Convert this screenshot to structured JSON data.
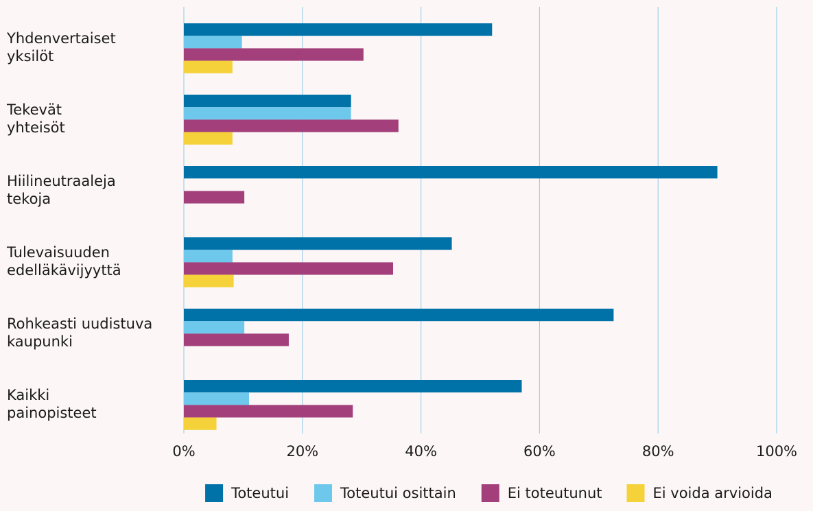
{
  "chart_data": {
    "type": "bar",
    "orientation": "horizontal",
    "title": "",
    "xlabel": "",
    "ylabel": "",
    "xlim": [
      0,
      100
    ],
    "x_tick_labels": [
      "0%",
      "20%",
      "40%",
      "60%",
      "80%",
      "100%"
    ],
    "x_tick_values": [
      0,
      20,
      40,
      60,
      80,
      100
    ],
    "grid": true,
    "legend_position": "bottom",
    "categories": [
      [
        "Yhdenvertaiset",
        "yksilöt"
      ],
      [
        "Tekevät",
        "yhteisöt"
      ],
      [
        "Hiilineutraaleja",
        "tekoja"
      ],
      [
        "Tulevaisuuden",
        "edelläkävijyyttä"
      ],
      [
        "Rohkeasti uudistuva",
        "kaupunki"
      ],
      [
        "Kaikki",
        "painopisteet"
      ]
    ],
    "series": [
      {
        "name": "Toteutui",
        "color": "#0072a8",
        "values": [
          52.0,
          28.2,
          90.0,
          45.2,
          72.5,
          57.0
        ]
      },
      {
        "name": "Toteutui osittain",
        "color": "#6ec8ec",
        "values": [
          9.8,
          28.2,
          0,
          8.2,
          10.2,
          11.0
        ]
      },
      {
        "name": "Ei toteutunut",
        "color": "#a3407c",
        "values": [
          30.3,
          36.2,
          10.2,
          35.3,
          17.7,
          28.5
        ]
      },
      {
        "name": "Ei voida arvioida",
        "color": "#f5d23a",
        "values": [
          8.2,
          8.2,
          0,
          8.4,
          0,
          5.5
        ]
      }
    ]
  }
}
